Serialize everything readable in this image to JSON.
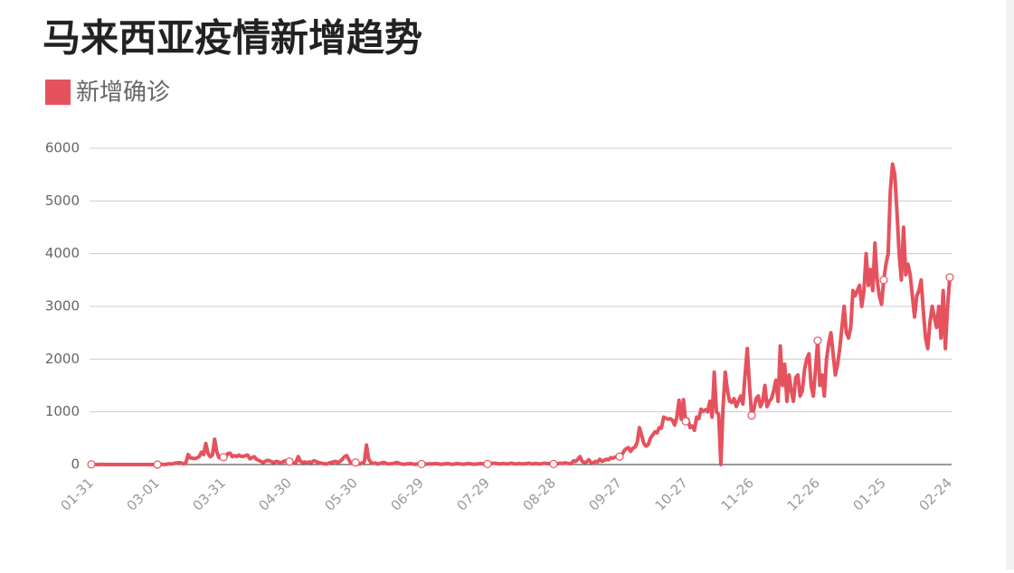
{
  "chart_data": {
    "type": "line",
    "title": "马来西亚疫情新增趋势",
    "categories": [
      "01-31",
      null,
      null,
      null,
      null,
      null,
      null,
      null,
      null,
      null,
      null,
      null,
      null,
      null,
      null,
      null,
      null,
      null,
      null,
      null,
      null,
      null,
      null,
      null,
      null,
      null,
      null,
      null,
      null,
      null,
      "03-01",
      null,
      null,
      null,
      null,
      null,
      null,
      null,
      null,
      null,
      null,
      null,
      null,
      null,
      null,
      null,
      null,
      null,
      null,
      null,
      null,
      null,
      null,
      null,
      null,
      null,
      null,
      null,
      null,
      null,
      "03-31",
      null,
      null,
      null,
      null,
      null,
      null,
      null,
      null,
      null,
      null,
      null,
      null,
      null,
      null,
      null,
      null,
      null,
      null,
      null,
      null,
      null,
      null,
      null,
      null,
      null,
      null,
      null,
      null,
      null,
      "04-30",
      null,
      null,
      null,
      null,
      null,
      null,
      null,
      null,
      null,
      null,
      null,
      null,
      null,
      null,
      null,
      null,
      null,
      null,
      null,
      null,
      null,
      null,
      null,
      null,
      null,
      null,
      null,
      null,
      null,
      "05-30",
      null,
      null,
      null,
      null,
      null,
      null,
      null,
      null,
      null,
      null,
      null,
      null,
      null,
      null,
      null,
      null,
      null,
      null,
      null,
      null,
      null,
      null,
      null,
      null,
      null,
      null,
      null,
      null,
      null,
      "06-29",
      null,
      null,
      null,
      null,
      null,
      null,
      null,
      null,
      null,
      null,
      null,
      null,
      null,
      null,
      null,
      null,
      null,
      null,
      null,
      null,
      null,
      null,
      null,
      null,
      null,
      null,
      null,
      null,
      null,
      "07-29",
      null,
      null,
      null,
      null,
      null,
      null,
      null,
      null,
      null,
      null,
      null,
      null,
      null,
      null,
      null,
      null,
      null,
      null,
      null,
      null,
      null,
      null,
      null,
      null,
      null,
      null,
      null,
      null,
      null,
      "08-28",
      null,
      null,
      null,
      null,
      null,
      null,
      null,
      null,
      null,
      null,
      null,
      null,
      null,
      null,
      null,
      null,
      null,
      null,
      null,
      null,
      null,
      null,
      null,
      null,
      null,
      null,
      null,
      null,
      null,
      "09-27",
      null,
      null,
      null,
      null,
      null,
      null,
      null,
      null,
      null,
      null,
      null,
      null,
      null,
      null,
      null,
      null,
      null,
      null,
      null,
      null,
      null,
      null,
      null,
      null,
      null,
      null,
      null,
      null,
      null,
      "10-27",
      null,
      null,
      null,
      null,
      null,
      null,
      null,
      null,
      null,
      null,
      null,
      null,
      null,
      null,
      null,
      null,
      null,
      null,
      null,
      null,
      null,
      null,
      null,
      null,
      null,
      null,
      null,
      null,
      null,
      "11-26",
      null,
      null,
      null,
      null,
      null,
      null,
      null,
      null,
      null,
      null,
      null,
      null,
      null,
      null,
      null,
      null,
      null,
      null,
      null,
      null,
      null,
      null,
      null,
      null,
      null,
      null,
      null,
      null,
      null,
      "12-26",
      null,
      null,
      null,
      null,
      null,
      null,
      null,
      null,
      null,
      null,
      null,
      null,
      null,
      null,
      null,
      null,
      null,
      null,
      null,
      null,
      null,
      null,
      null,
      null,
      null,
      null,
      null,
      null,
      null,
      "01-25",
      null,
      null,
      null,
      null,
      null,
      null,
      null,
      null,
      null,
      null,
      null,
      null,
      null,
      null,
      null,
      null,
      null,
      null,
      null,
      null,
      null,
      null,
      null,
      null,
      null,
      null,
      null,
      null,
      null,
      "02-24"
    ],
    "series": [
      {
        "name": "新增确诊",
        "color": "#e5525e",
        "values": [
          3,
          1,
          0,
          0,
          2,
          4,
          0,
          2,
          0,
          1,
          2,
          0,
          0,
          0,
          0,
          0,
          0,
          0,
          0,
          0,
          0,
          0,
          0,
          0,
          0,
          3,
          1,
          0,
          0,
          2,
          0,
          4,
          7,
          1,
          4,
          14,
          10,
          14,
          27,
          29,
          36,
          28,
          10,
          41,
          190,
          125,
          120,
          110,
          130,
          150,
          235,
          190,
          400,
          212,
          150,
          180,
          480,
          235,
          130,
          150,
          140,
          142,
          208,
          217,
          150,
          170,
          150,
          180,
          156,
          153,
          170,
          180,
          110,
          130,
          150,
          100,
          80,
          60,
          40,
          60,
          80,
          70,
          50,
          40,
          60,
          50,
          30,
          50,
          71,
          40,
          57,
          31,
          30,
          45,
          150,
          60,
          40,
          50,
          30,
          50,
          40,
          70,
          60,
          40,
          30,
          20,
          15,
          10,
          30,
          40,
          50,
          60,
          40,
          60,
          100,
          150,
          170,
          90,
          20,
          30,
          38,
          20,
          10,
          30,
          50,
          370,
          100,
          40,
          20,
          30,
          10,
          20,
          30,
          40,
          20,
          10,
          15,
          20,
          30,
          40,
          20,
          10,
          5,
          10,
          15,
          20,
          10,
          5,
          10,
          20,
          10,
          5,
          8,
          10,
          15,
          10,
          20,
          15,
          10,
          5,
          10,
          15,
          20,
          10,
          5,
          10,
          20,
          15,
          10,
          5,
          10,
          20,
          15,
          10,
          5,
          10,
          15,
          20,
          10,
          15,
          10,
          15,
          20,
          25,
          20,
          15,
          10,
          20,
          15,
          10,
          20,
          25,
          15,
          10,
          20,
          15,
          10,
          15,
          20,
          25,
          10,
          15,
          20,
          15,
          10,
          20,
          25,
          15,
          20,
          15,
          10,
          20,
          15,
          25,
          20,
          30,
          25,
          20,
          15,
          70,
          60,
          100,
          150,
          60,
          40,
          50,
          90,
          40,
          30,
          60,
          50,
          100,
          60,
          80,
          100,
          90,
          130,
          120,
          140,
          150,
          150,
          180,
          260,
          300,
          320,
          250,
          310,
          330,
          420,
          700,
          560,
          400,
          350,
          380,
          500,
          560,
          620,
          600,
          700,
          690,
          900,
          880,
          860,
          870,
          840,
          750,
          900,
          1220,
          860,
          1230,
          820,
          860,
          700,
          730,
          650,
          900,
          870,
          1050,
          1010,
          1040,
          1000,
          1200,
          900,
          1750,
          1000,
          950,
          0,
          1100,
          1750,
          1400,
          1200,
          1180,
          1250,
          1100,
          1200,
          1300,
          1150,
          1700,
          2200,
          1500,
          930,
          1050,
          1250,
          1300,
          1100,
          1200,
          1500,
          1100,
          1200,
          1250,
          1400,
          1600,
          1200,
          2250,
          1500,
          1900,
          1200,
          1700,
          1400,
          1200,
          1650,
          1700,
          1300,
          1400,
          1800,
          2000,
          2100,
          1500,
          1300,
          1800,
          2350,
          1500,
          1700,
          1300,
          2000,
          2300,
          2500,
          2100,
          1700,
          1900,
          2200,
          2600,
          3000,
          2500,
          2400,
          2600,
          3300,
          3200,
          3300,
          3400,
          3000,
          3300,
          4000,
          3400,
          3700,
          3300,
          4200,
          3500,
          3200,
          3040,
          3500,
          3800,
          4000,
          5200,
          5700,
          5500,
          4800,
          4000,
          3500,
          4500,
          3600,
          3800,
          3600,
          3200,
          2800,
          3200,
          3300,
          3500,
          2900,
          2400,
          2200,
          2700,
          3000,
          2800,
          2600,
          3000,
          2400,
          3300,
          2200,
          3000,
          3550
        ]
      }
    ],
    "ylim": [
      0,
      6000
    ],
    "yticks": [
      0,
      1000,
      2000,
      3000,
      4000,
      5000,
      6000
    ],
    "grid": true
  }
}
